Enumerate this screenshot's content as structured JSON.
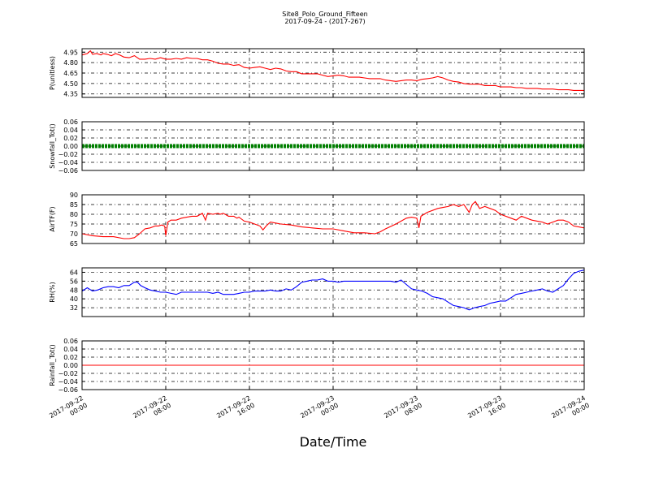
{
  "figure": {
    "title": "Site8_Polo_Ground_Fifteen",
    "subtitle": "2017-09-24 - (2017-267)",
    "xlabel": "Date/Time",
    "x_ticks": [
      [
        "2017-09-22",
        "00:00"
      ],
      [
        "2017-09-22",
        "08:00"
      ],
      [
        "2017-09-22",
        "16:00"
      ],
      [
        "2017-09-23",
        "00:00"
      ],
      [
        "2017-09-23",
        "08:00"
      ],
      [
        "2017-09-23",
        "16:00"
      ],
      [
        "2017-09-24",
        "00:00"
      ]
    ]
  },
  "chart_data": [
    {
      "type": "line",
      "ylabel": "P(unitless)",
      "ylim": [
        4.3,
        5.0
      ],
      "yticks": [
        "4.95",
        "4.80",
        "4.65",
        "4.50",
        "4.35"
      ],
      "ytick_values": [
        4.95,
        4.8,
        4.65,
        4.5,
        4.35
      ],
      "grid": true,
      "xlim_hours": [
        0,
        48
      ],
      "series": [
        {
          "color": "#ff0000",
          "x": [
            0,
            0.5,
            0.8,
            1,
            1.4,
            1.8,
            2,
            2.4,
            2.8,
            3.2,
            3.6,
            4,
            4.5,
            5,
            5.5,
            6,
            6.5,
            7,
            7.5,
            8,
            8.5,
            9,
            9.5,
            10,
            10.5,
            11,
            11.5,
            12,
            12.5,
            13,
            13.5,
            14,
            14.5,
            15,
            15.5,
            16,
            16.5,
            17,
            17.5,
            18,
            18.5,
            19,
            19.5,
            20,
            20.5,
            21,
            21.5,
            22,
            22.5,
            23,
            23.5,
            24,
            24.5,
            25,
            25.5,
            26,
            26.5,
            27,
            27.5,
            28,
            28.5,
            29,
            29.5,
            30,
            30.5,
            31,
            31.5,
            32,
            32.5,
            33,
            33.5,
            34,
            34.5,
            35,
            35.5,
            36,
            36.5,
            37,
            37.5,
            38,
            38.5,
            39,
            39.5,
            40,
            40.5,
            41,
            41.5,
            42,
            42.5,
            43,
            43.5,
            44,
            44.5,
            45,
            45.5,
            46,
            46.5,
            47,
            47.5,
            48
          ],
          "y": [
            4.91,
            4.93,
            4.97,
            4.92,
            4.93,
            4.91,
            4.93,
            4.92,
            4.9,
            4.93,
            4.91,
            4.88,
            4.87,
            4.9,
            4.85,
            4.85,
            4.86,
            4.85,
            4.87,
            4.85,
            4.85,
            4.86,
            4.85,
            4.87,
            4.86,
            4.86,
            4.84,
            4.84,
            4.82,
            4.79,
            4.78,
            4.78,
            4.76,
            4.77,
            4.73,
            4.72,
            4.73,
            4.74,
            4.72,
            4.7,
            4.72,
            4.71,
            4.68,
            4.67,
            4.67,
            4.64,
            4.64,
            4.64,
            4.64,
            4.62,
            4.6,
            4.61,
            4.62,
            4.61,
            4.59,
            4.59,
            4.59,
            4.58,
            4.57,
            4.57,
            4.57,
            4.55,
            4.54,
            4.53,
            4.54,
            4.55,
            4.55,
            4.54,
            4.56,
            4.57,
            4.58,
            4.6,
            4.58,
            4.55,
            4.53,
            4.52,
            4.5,
            4.49,
            4.49,
            4.49,
            4.47,
            4.47,
            4.47,
            4.45,
            4.45,
            4.45,
            4.44,
            4.44,
            4.43,
            4.43,
            4.43,
            4.42,
            4.42,
            4.42,
            4.41,
            4.41,
            4.41,
            4.4,
            4.4,
            4.4
          ]
        }
      ]
    },
    {
      "type": "scatter",
      "ylabel": "Snowfall_Tot()",
      "ylim": [
        -0.06,
        0.06
      ],
      "yticks": [
        "0.06",
        "0.04",
        "0.02",
        "0.00",
        "−0.02",
        "−0.04",
        "−0.06"
      ],
      "ytick_values": [
        0.06,
        0.04,
        0.02,
        0.0,
        -0.02,
        -0.04,
        -0.06
      ],
      "grid": true,
      "xlim_hours": [
        0,
        48
      ],
      "series": [
        {
          "color": "#008000",
          "constant": 0.0
        }
      ]
    },
    {
      "type": "line",
      "ylabel": "AirTF(F)",
      "ylim": [
        65,
        90
      ],
      "yticks": [
        "90",
        "85",
        "80",
        "75",
        "70",
        "65"
      ],
      "ytick_values": [
        90,
        85,
        80,
        75,
        70,
        65
      ],
      "grid": true,
      "xlim_hours": [
        0,
        48
      ],
      "series": [
        {
          "color": "#ff0000",
          "x": [
            0,
            1,
            2,
            3,
            4,
            4.5,
            5,
            5.5,
            6,
            6.5,
            7,
            7.3,
            7.6,
            7.9,
            8.0,
            8.2,
            8.5,
            9,
            9.5,
            10,
            10.5,
            11,
            11.5,
            11.8,
            12,
            12.5,
            13,
            13.2,
            13.5,
            14,
            14.5,
            14.8,
            15,
            15.5,
            16,
            16.5,
            17,
            17.3,
            17.6,
            18,
            18.5,
            19,
            20,
            21,
            22,
            23,
            24,
            25,
            26,
            27,
            28,
            28.5,
            29,
            30,
            31,
            31.5,
            32,
            32.2,
            32.4,
            32.7,
            33,
            34,
            34.5,
            35,
            35.5,
            36,
            36.5,
            37,
            37.3,
            37.6,
            38,
            38.5,
            39,
            39.5,
            40,
            40.5,
            41,
            41.5,
            42,
            42.5,
            43,
            43.5,
            44,
            44.5,
            45,
            45.5,
            46,
            46.5,
            47,
            48
          ],
          "y": [
            70,
            69,
            68.5,
            68.5,
            67.5,
            67.5,
            68,
            70,
            72.5,
            73,
            74,
            74,
            74.5,
            74,
            69,
            76,
            77,
            77,
            78,
            78.5,
            79,
            79,
            80.5,
            77,
            80.5,
            80,
            80.5,
            80,
            80.5,
            79,
            79,
            78,
            78.5,
            76.5,
            76,
            75,
            74,
            72,
            74,
            76,
            75.5,
            75,
            74.5,
            73.5,
            73,
            72.5,
            72.5,
            71.5,
            70.5,
            70.5,
            70,
            71,
            72.5,
            75,
            78,
            78.5,
            78,
            73,
            79,
            80,
            81,
            83,
            83.5,
            84,
            85,
            84,
            85,
            81,
            85,
            86.5,
            83,
            84,
            83,
            82,
            80,
            79,
            78,
            77,
            79,
            78,
            77,
            76.5,
            76,
            75,
            76,
            77,
            77,
            76,
            74,
            73
          ]
        }
      ]
    },
    {
      "type": "line",
      "ylabel": "RH(%)",
      "ylim": [
        24,
        68
      ],
      "yticks": [
        "64",
        "56",
        "48",
        "40",
        "32"
      ],
      "ytick_values": [
        64,
        56,
        48,
        40,
        32
      ],
      "grid": true,
      "xlim_hours": [
        0,
        48
      ],
      "series": [
        {
          "color": "#0000ff",
          "x": [
            0,
            0.5,
            1,
            1.5,
            2,
            2.5,
            3,
            3.5,
            4,
            4.5,
            5,
            5.3,
            5.6,
            6,
            6.5,
            7,
            7.5,
            8,
            8.5,
            9,
            9.5,
            10,
            11,
            12,
            12.5,
            13,
            13.5,
            14,
            14.5,
            15,
            15.5,
            16,
            16.5,
            17,
            17.5,
            18,
            18.5,
            19,
            19.5,
            20,
            20.5,
            21,
            21.5,
            22,
            22.5,
            23,
            23.5,
            24,
            24.5,
            25,
            25.5,
            26,
            26.5,
            27,
            27.5,
            28,
            28.5,
            29,
            29.5,
            30,
            30.5,
            31,
            31.5,
            32,
            32.5,
            33,
            33.5,
            34,
            34.5,
            35,
            35.5,
            36,
            36.5,
            37,
            37.5,
            38,
            38.5,
            39,
            39.5,
            40,
            40.5,
            41,
            41.5,
            42,
            42.5,
            43,
            43.5,
            44,
            44.5,
            45,
            45.5,
            46,
            46.5,
            47,
            47.5,
            48
          ],
          "y": [
            47,
            50,
            47,
            48,
            50,
            51,
            51,
            50,
            52,
            52,
            55,
            55,
            52,
            50,
            48,
            47,
            46,
            46,
            45,
            44,
            46,
            46,
            46,
            46,
            45,
            46,
            44,
            44,
            44,
            45,
            46,
            46,
            47,
            47,
            47,
            48,
            47,
            47,
            49,
            48,
            51,
            55,
            56,
            57,
            57,
            58,
            56,
            56,
            55,
            56,
            56,
            56,
            56,
            56,
            56,
            56,
            56,
            56,
            56,
            55,
            57,
            53,
            49,
            48,
            47,
            45,
            42,
            41,
            40,
            37,
            34,
            33,
            32,
            30,
            32,
            33,
            34,
            36,
            37,
            38,
            38,
            41,
            44,
            45,
            46,
            47,
            48,
            49,
            47,
            46,
            49,
            52,
            58,
            63,
            65,
            66
          ]
        }
      ]
    },
    {
      "type": "line",
      "ylabel": "Rainfall_Tot()",
      "ylim": [
        -0.06,
        0.06
      ],
      "yticks": [
        "0.06",
        "0.04",
        "0.02",
        "0.00",
        "−0.02",
        "−0.04",
        "−0.06"
      ],
      "ytick_values": [
        0.06,
        0.04,
        0.02,
        0.0,
        -0.02,
        -0.04,
        -0.06
      ],
      "grid": true,
      "xlim_hours": [
        0,
        48
      ],
      "series": [
        {
          "color": "#ff0000",
          "constant": 0.0
        }
      ]
    }
  ]
}
